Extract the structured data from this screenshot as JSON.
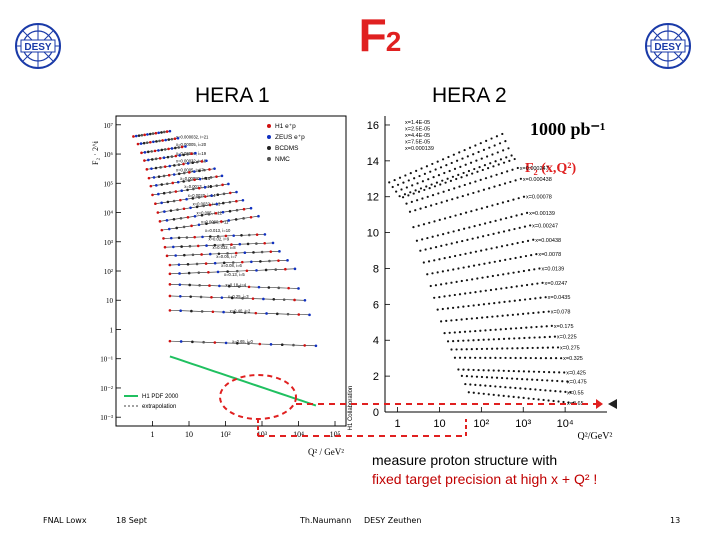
{
  "slide": {
    "title_main": "F",
    "title_sub": "2",
    "left_panel_label": "HERA 1",
    "right_panel_label": "HERA 2",
    "logo_text": "DESY",
    "note_line1": "measure proton structure with",
    "note_line2": "fixed target precision at high x + Q² !"
  },
  "footer": {
    "left": "FNAL Lowx",
    "date": "18 Sept",
    "author": "Th.Naumann",
    "institute": "DESY Zeuthen",
    "page": "13"
  },
  "colors": {
    "title": "#e02020",
    "note_highlight": "#c00000",
    "h1_points": "#d01010",
    "zeus_points": "#1030c0",
    "fit_line": "#20c060"
  },
  "chart_data": [
    {
      "type": "scatter",
      "panel": "HERA 1",
      "ylabel": "F₂ · 2^i",
      "xlabel": "Q² / GeV²",
      "yscale": "log",
      "xscale": "log",
      "y_ticks": [
        "10⁻³",
        "10⁻²",
        "10⁻¹",
        "1",
        "10",
        "10²",
        "10³",
        "10⁴",
        "10⁵",
        "10⁶",
        "10⁷"
      ],
      "x_ticks": [
        "1",
        "10",
        "10²",
        "10³",
        "10⁴",
        "10⁵"
      ],
      "ylim": [
        0.0005,
        20000000
      ],
      "xlim": [
        0.1,
        200000
      ],
      "legend": [
        "H1 e⁺p",
        "ZEUS e⁺p",
        "BCDMS",
        "NMC"
      ],
      "legend_lower": [
        "H1 PDF 2000",
        "extrapolation"
      ],
      "side_label": "H1 Collaboration",
      "series": [
        {
          "label": "x=0.000032, i=21",
          "y_start": 4000000,
          "x_range": [
            0.3,
            3
          ]
        },
        {
          "label": "x=0.00005, i=20",
          "y_start": 2200000,
          "x_range": [
            0.4,
            5
          ]
        },
        {
          "label": "x=0.00013, i=19",
          "y_start": 1100000,
          "x_range": [
            0.5,
            8
          ]
        },
        {
          "label": "x=0.00032, i=18",
          "y_start": 600000,
          "x_range": [
            0.6,
            15
          ]
        },
        {
          "label": "x=0.0005, i=17",
          "y_start": 300000,
          "x_range": [
            0.7,
            30
          ]
        },
        {
          "label": "x=0.00080, i=16",
          "y_start": 150000,
          "x_range": [
            0.8,
            50
          ]
        },
        {
          "label": "x=0.0013, i=15",
          "y_start": 80000,
          "x_range": [
            0.9,
            80
          ]
        },
        {
          "label": "x=0.0020, i=14",
          "y_start": 40000,
          "x_range": [
            1,
            120
          ]
        },
        {
          "label": "x=0.0032, i=13",
          "y_start": 20000,
          "x_range": [
            1.2,
            200
          ]
        },
        {
          "label": "x=0.005, i=12",
          "y_start": 10000,
          "x_range": [
            1.4,
            300
          ]
        },
        {
          "label": "x=0.0080, i=11",
          "y_start": 5000,
          "x_range": [
            1.6,
            500
          ]
        },
        {
          "label": "x=0.013, i=10",
          "y_start": 2500,
          "x_range": [
            1.8,
            800
          ]
        },
        {
          "label": "x=0.02, i=9",
          "y_start": 1300,
          "x_range": [
            2,
            1200
          ]
        },
        {
          "label": "x=0.032, i=8",
          "y_start": 650,
          "x_range": [
            2.2,
            2000
          ]
        },
        {
          "label": "x=0.05, i=7",
          "y_start": 330,
          "x_range": [
            2.5,
            3000
          ]
        },
        {
          "label": "x=0.08, i=6",
          "y_start": 160,
          "x_range": [
            3,
            5000
          ]
        },
        {
          "label": "x=0.13, i=5",
          "y_start": 80,
          "x_range": [
            3,
            8000
          ]
        },
        {
          "label": "x=0.18, i=4",
          "y_start": 35,
          "x_range": [
            3,
            10000
          ]
        },
        {
          "label": "x=0.25, i=3",
          "y_start": 14,
          "x_range": [
            3,
            15000
          ]
        },
        {
          "label": "x=0.40, i=2",
          "y_start": 4.5,
          "x_range": [
            3,
            20000
          ]
        },
        {
          "label": "x=0.65, i=0",
          "y_start": 0.4,
          "x_range": [
            3,
            30000
          ]
        }
      ],
      "highlight": {
        "x_range": [
          3000,
          30000
        ],
        "y_range": [
          0.002,
          0.05
        ]
      }
    },
    {
      "type": "scatter",
      "panel": "HERA 2",
      "title": "1000 pb⁻¹",
      "subtitle": "F₂ (x,Q²)",
      "xlabel": "Q²/GeV²",
      "xscale": "log",
      "xlim": [
        0.5,
        100000
      ],
      "ylim": [
        0,
        16.5
      ],
      "y_ticks": [
        0,
        2,
        4,
        6,
        8,
        10,
        12,
        14,
        16
      ],
      "x_ticks": [
        "1",
        "10",
        "10²",
        "10³",
        "10⁴"
      ],
      "x_values": [
        "1.4E-05",
        "2.5E-05",
        "4.4E-05",
        "7.5E-05",
        "0.000139",
        "0.000247",
        "0.000438",
        "0.00078",
        "0.00139",
        "0.00247",
        "0.00438",
        "0.0078",
        "0.0139",
        "0.0247",
        "0.0435",
        "0.078",
        "0.125",
        "0.175",
        "0.225",
        "0.275",
        "0.325",
        "0.425",
        "0.475",
        "0.55",
        "0.65"
      ],
      "labeled_x": [
        {
          "label": "x=1.4E-05",
          "y": 15.5
        },
        {
          "label": "x=2.5E-05",
          "y": 15.1
        },
        {
          "label": "x=4.4E-05",
          "y": 14.7
        },
        {
          "label": "x=7.5E-05",
          "y": 14.3
        },
        {
          "label": "x=0.000139",
          "y": 14.1
        },
        {
          "label": "x=0.000247",
          "y": 13.6
        },
        {
          "label": "x=0.000438",
          "y": 13.0
        },
        {
          "label": "x=0.00078",
          "y": 12.0
        },
        {
          "label": "x=0.00139",
          "y": 11.1
        },
        {
          "label": "x=0.00247",
          "y": 10.4
        },
        {
          "label": "x=0.00438",
          "y": 9.6
        },
        {
          "label": "x=0.0078",
          "y": 8.8
        },
        {
          "label": "x=0.0139",
          "y": 8.0
        },
        {
          "label": "x=0.0247",
          "y": 7.2
        },
        {
          "label": "x=0.0435",
          "y": 6.4
        },
        {
          "label": "x=0.078",
          "y": 5.6
        },
        {
          "label": "x=0.175",
          "y": 4.8
        },
        {
          "label": "x=0.225",
          "y": 4.2
        },
        {
          "label": "x=0.275",
          "y": 3.6
        },
        {
          "label": "x=0.325",
          "y": 3.0
        },
        {
          "label": "x=0.425",
          "y": 2.2
        },
        {
          "label": "x=0.475",
          "y": 1.7
        },
        {
          "label": "x=0.55",
          "y": 1.1
        },
        {
          "label": "x=0.65",
          "y": 0.5
        }
      ]
    }
  ]
}
